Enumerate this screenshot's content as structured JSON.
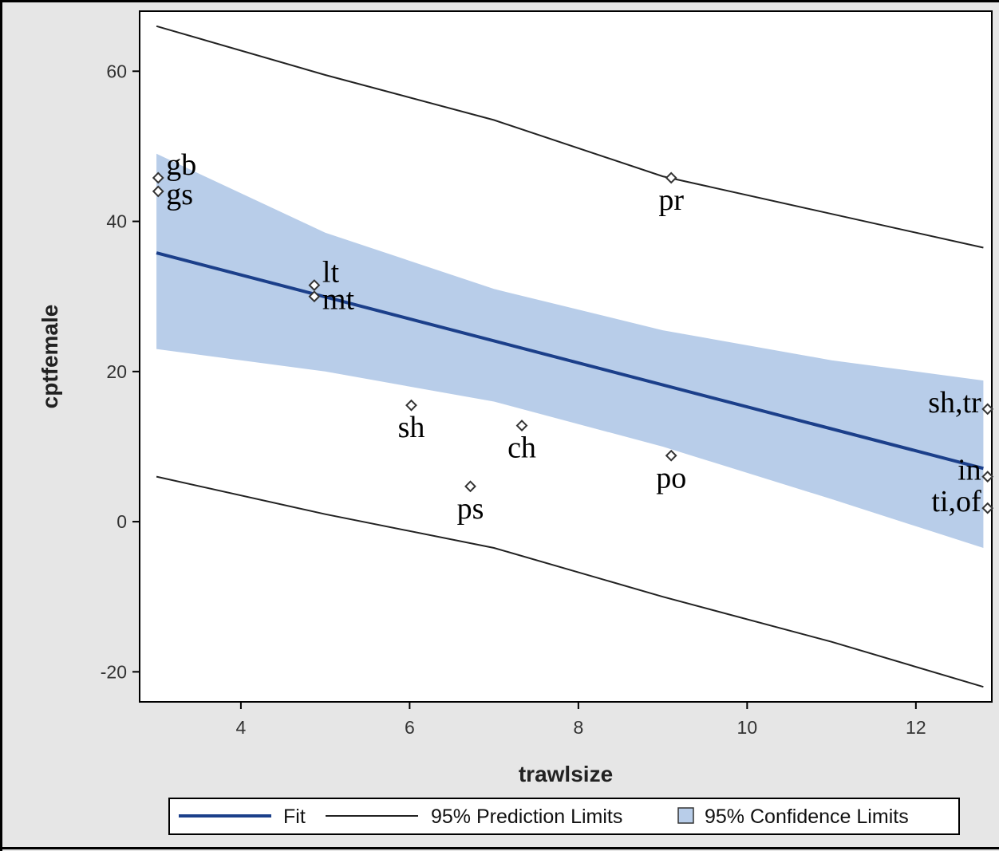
{
  "chart_data": {
    "type": "scatter",
    "xlabel": "trawlsize",
    "ylabel": "cptfemale",
    "xlim": [
      2.8,
      12.9
    ],
    "ylim": [
      -24,
      68
    ],
    "x_ticks": [
      4,
      6,
      8,
      10,
      12
    ],
    "y_ticks": [
      -20,
      0,
      20,
      40,
      60
    ],
    "grid": false,
    "legend_position": "bottom",
    "colors": {
      "fit": "#1b3f8a",
      "prediction": "#222222",
      "confidence_fill": "#b8cde9",
      "marker": "#333333",
      "frame_background": "#e6e6e6"
    },
    "points": [
      {
        "label": "gb",
        "x": 3.02,
        "y": 45.8,
        "label_pos": "right-upper"
      },
      {
        "label": "gs",
        "x": 3.02,
        "y": 44.0,
        "label_pos": "right-lower"
      },
      {
        "label": "lt",
        "x": 4.87,
        "y": 31.5,
        "label_pos": "right-upper"
      },
      {
        "label": "mt",
        "x": 4.87,
        "y": 30.0,
        "label_pos": "right-lower"
      },
      {
        "label": "pr",
        "x": 9.1,
        "y": 45.8,
        "label_pos": "below"
      },
      {
        "label": "sh",
        "x": 6.02,
        "y": 15.5,
        "label_pos": "below"
      },
      {
        "label": "ch",
        "x": 7.33,
        "y": 12.8,
        "label_pos": "below"
      },
      {
        "label": "ps",
        "x": 6.72,
        "y": 4.7,
        "label_pos": "below"
      },
      {
        "label": "po",
        "x": 9.1,
        "y": 8.8,
        "label_pos": "below"
      },
      {
        "label": "sh,tr",
        "x": 12.85,
        "y": 15.0,
        "label_pos": "left"
      },
      {
        "label": "in",
        "x": 12.85,
        "y": 6.0,
        "label_pos": "left"
      },
      {
        "label": "ti,of",
        "x": 12.85,
        "y": 1.8,
        "label_pos": "left"
      }
    ],
    "fit": {
      "x": [
        3.0,
        12.8
      ],
      "y": [
        35.8,
        7.1
      ]
    },
    "prediction_upper": {
      "x": [
        3.0,
        5.0,
        7.0,
        9.0,
        11.0,
        12.8
      ],
      "y": [
        66.0,
        59.5,
        53.5,
        46.0,
        41.0,
        36.5
      ]
    },
    "prediction_lower": {
      "x": [
        3.0,
        5.0,
        7.0,
        9.0,
        11.0,
        12.8
      ],
      "y": [
        6.0,
        1.0,
        -3.5,
        -10.0,
        -16.0,
        -22.0
      ]
    },
    "confidence_upper": {
      "x": [
        3.0,
        5.0,
        7.0,
        9.0,
        11.0,
        12.8
      ],
      "y": [
        49.0,
        38.5,
        31.0,
        25.5,
        21.5,
        18.8
      ]
    },
    "confidence_lower": {
      "x": [
        3.0,
        5.0,
        7.0,
        9.0,
        11.0,
        12.8
      ],
      "y": [
        23.0,
        20.0,
        16.0,
        10.0,
        3.0,
        -3.5
      ]
    },
    "legend": {
      "fit": "Fit",
      "prediction": "95% Prediction Limits",
      "confidence": "95% Confidence Limits"
    }
  }
}
